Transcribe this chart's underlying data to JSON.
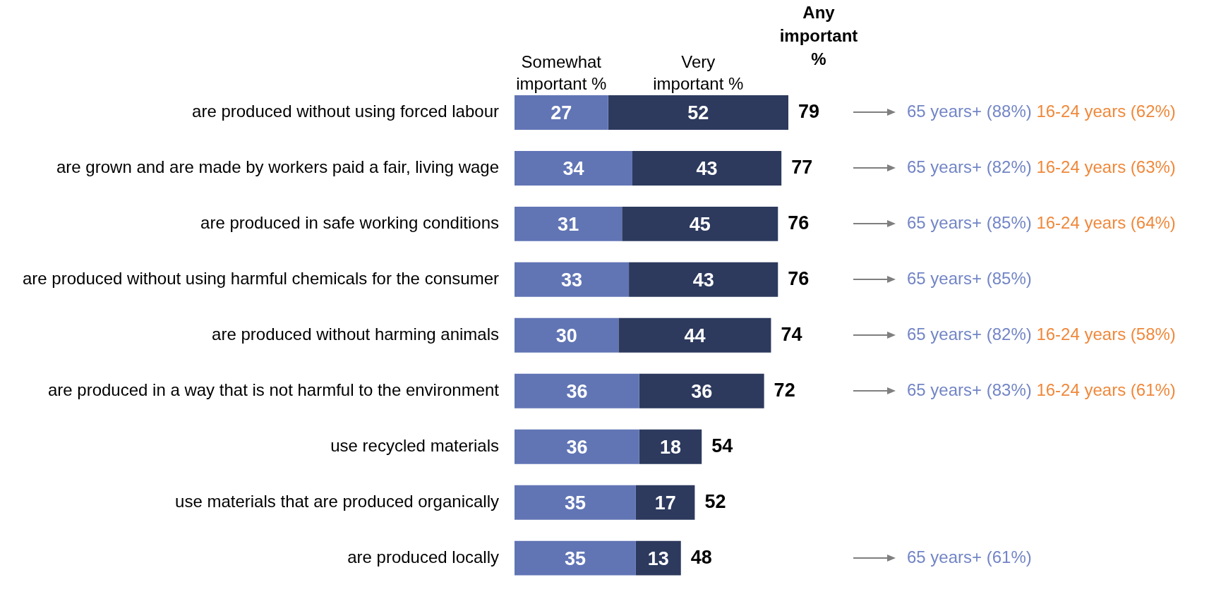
{
  "chart_data": {
    "type": "bar",
    "orientation": "horizontal",
    "stacked": true,
    "data_labels": true,
    "tick_labels": "y",
    "categories": [
      "are produced without using forced labour",
      "are grown and are made by workers paid a fair, living wage",
      "are produced in safe working conditions",
      "are produced without using harmful chemicals for the consumer",
      "are produced without harming animals",
      "are produced in a way that is not harmful to the environment",
      "use recycled materials",
      "use materials that are produced organically",
      "are produced locally"
    ],
    "series": [
      {
        "name": "Somewhat important %",
        "color": "#6175b5",
        "values": [
          27,
          34,
          31,
          33,
          30,
          36,
          36,
          35,
          35
        ]
      },
      {
        "name": "Very important %",
        "color": "#2d3a5e",
        "values": [
          52,
          43,
          45,
          43,
          44,
          36,
          18,
          17,
          13
        ]
      }
    ],
    "totals": [
      "79",
      "77",
      "76",
      "76",
      "74",
      "72",
      "54",
      "52",
      "48"
    ],
    "annotations": [
      "Any important %",
      "65 years+ (88%)",
      "16-24 years (62%)",
      "65 years+ (82%)",
      "16-24 years (63%)",
      "65 years+ (85%)",
      "16-24 years (64%)",
      "65 years+ (85%)",
      "65 years+ (82%)",
      "16-24 years (58%)",
      "65 years+ (83%)",
      "16-24 years (61%)",
      "65 years+ (61%)"
    ]
  }
}
